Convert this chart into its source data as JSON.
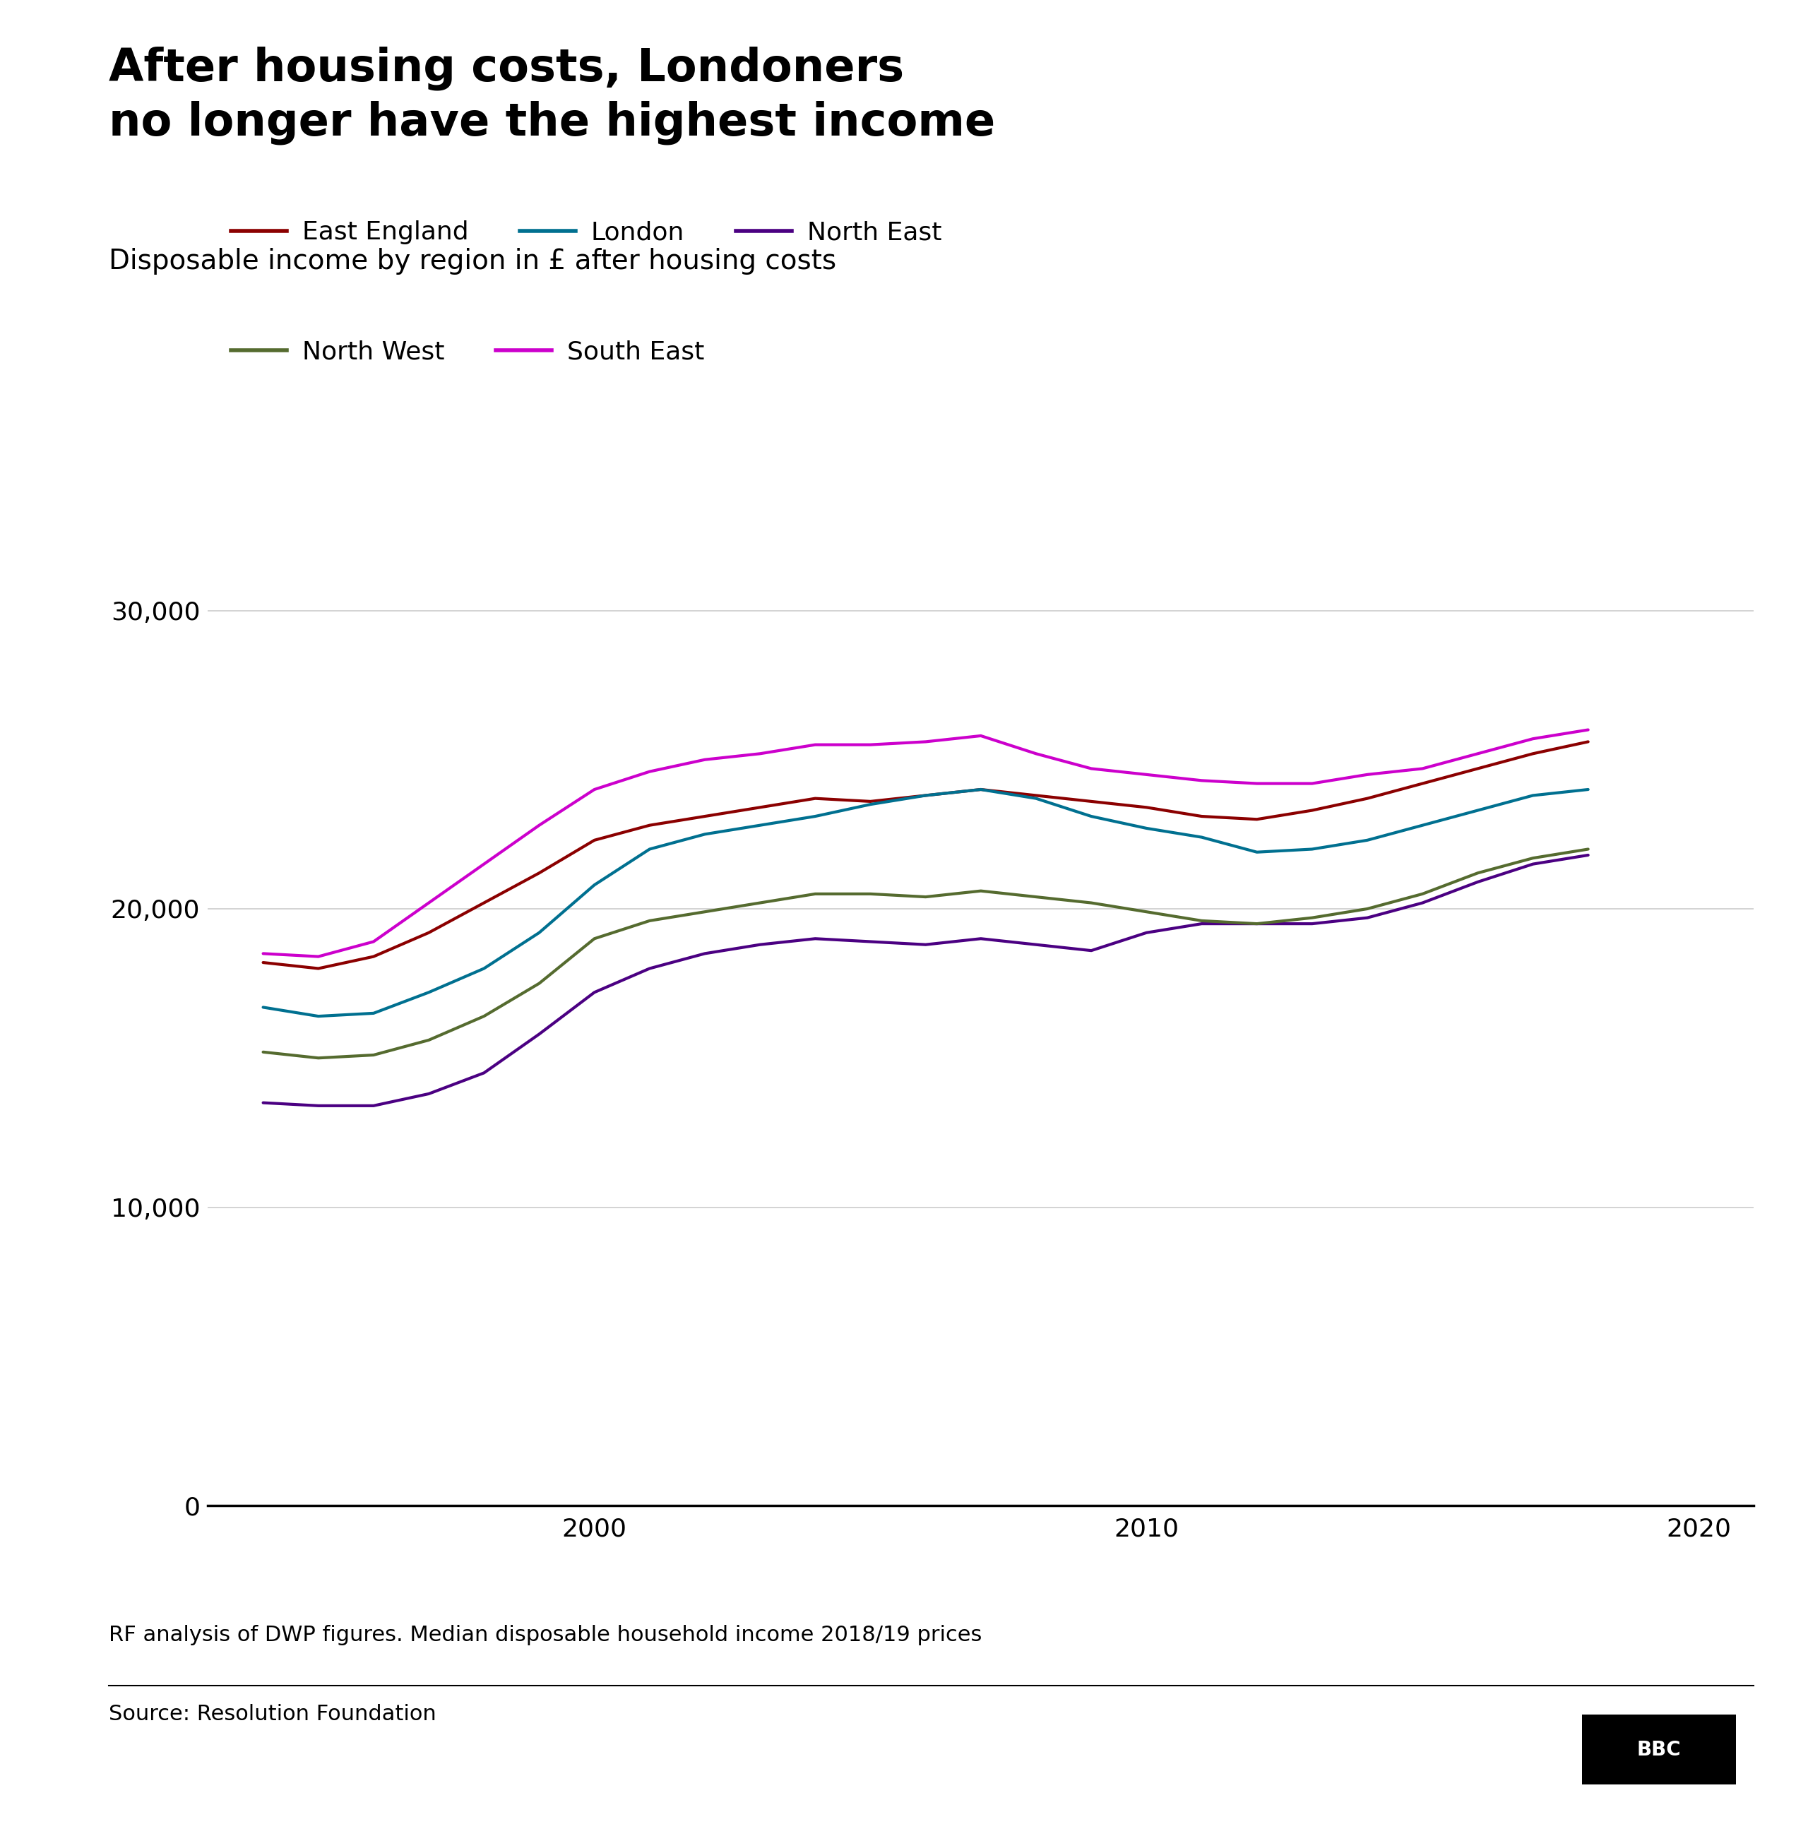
{
  "title": "After housing costs, Londoners\nno longer have the highest income",
  "subtitle": "Disposable income by region in £ after housing costs",
  "footnote": "RF analysis of DWP figures. Median disposable household income 2018/19 prices",
  "source": "Source: Resolution Foundation",
  "years": [
    1994,
    1995,
    1996,
    1997,
    1998,
    1999,
    2000,
    2001,
    2002,
    2003,
    2004,
    2005,
    2006,
    2007,
    2008,
    2009,
    2010,
    2011,
    2012,
    2013,
    2014,
    2015,
    2016,
    2017,
    2018
  ],
  "series": {
    "East England": {
      "color": "#8B0000",
      "values": [
        18200,
        18000,
        18400,
        19200,
        20200,
        21200,
        22300,
        22800,
        23100,
        23400,
        23700,
        23600,
        23800,
        24000,
        23800,
        23600,
        23400,
        23100,
        23000,
        23300,
        23700,
        24200,
        24700,
        25200,
        25600
      ]
    },
    "London": {
      "color": "#007090",
      "values": [
        16700,
        16400,
        16500,
        17200,
        18000,
        19200,
        20800,
        22000,
        22500,
        22800,
        23100,
        23500,
        23800,
        24000,
        23700,
        23100,
        22700,
        22400,
        21900,
        22000,
        22300,
        22800,
        23300,
        23800,
        24000
      ]
    },
    "North East": {
      "color": "#4B0082",
      "values": [
        13500,
        13400,
        13400,
        13800,
        14500,
        15800,
        17200,
        18000,
        18500,
        18800,
        19000,
        18900,
        18800,
        19000,
        18800,
        18600,
        19200,
        19500,
        19500,
        19500,
        19700,
        20200,
        20900,
        21500,
        21800
      ]
    },
    "North West": {
      "color": "#556B2F",
      "values": [
        15200,
        15000,
        15100,
        15600,
        16400,
        17500,
        19000,
        19600,
        19900,
        20200,
        20500,
        20500,
        20400,
        20600,
        20400,
        20200,
        19900,
        19600,
        19500,
        19700,
        20000,
        20500,
        21200,
        21700,
        22000
      ]
    },
    "South East": {
      "color": "#CC00CC",
      "values": [
        18500,
        18400,
        18900,
        20200,
        21500,
        22800,
        24000,
        24600,
        25000,
        25200,
        25500,
        25500,
        25600,
        25800,
        25200,
        24700,
        24500,
        24300,
        24200,
        24200,
        24500,
        24700,
        25200,
        25700,
        26000
      ]
    }
  },
  "ylim": [
    0,
    32000
  ],
  "yticks": [
    0,
    10000,
    20000,
    30000
  ],
  "xlim": [
    1993,
    2021
  ],
  "xticks": [
    2000,
    2010,
    2020
  ],
  "line_width": 3.0,
  "title_fontsize": 46,
  "subtitle_fontsize": 28,
  "tick_fontsize": 26,
  "legend_fontsize": 26,
  "footnote_fontsize": 22,
  "source_fontsize": 22
}
